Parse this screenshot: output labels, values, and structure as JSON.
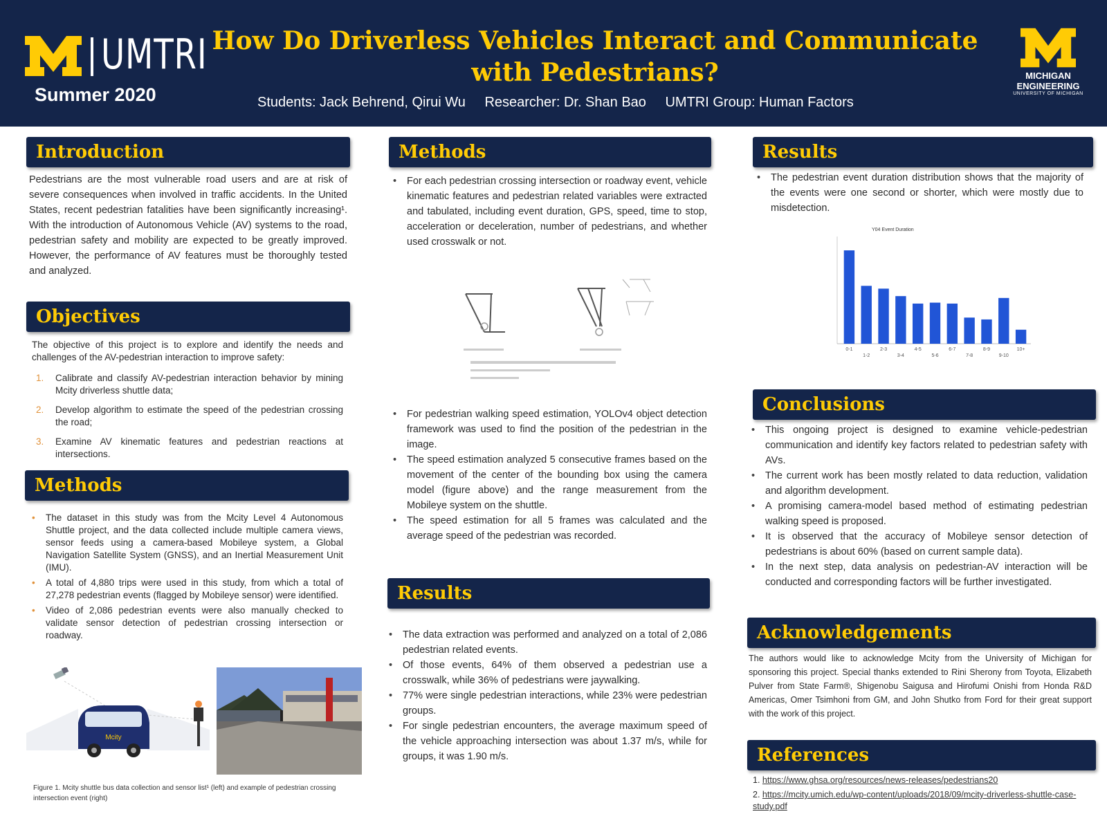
{
  "header": {
    "org": "UMTRI",
    "season": "Summer 2020",
    "title": "How Do Driverless Vehicles Interact and Communicate with Pedestrians?",
    "students": "Students: Jack Behrend, Qirui Wu",
    "researcher": "Researcher: Dr. Shan Bao",
    "group": "UMTRI Group:  Human Factors",
    "partner_logo_line1": "MICHIGAN",
    "partner_logo_line2": "ENGINEERING",
    "partner_logo_line3": "UNIVERSITY OF MICHIGAN"
  },
  "colors": {
    "navy": "#14254a",
    "maize": "#ffcb05",
    "bar_blue": "#2155d6",
    "bullet_orange": "#e0913a"
  },
  "introduction": {
    "heading": "Introduction",
    "text": "Pedestrians are the most vulnerable road users and are at risk of severe consequences when involved in traffic accidents. In the United States, recent pedestrian fatalities have been significantly increasing¹. With the introduction of Autonomous Vehicle (AV) systems to the road, pedestrian safety and mobility are expected to be greatly improved. However, the performance of AV features must be thoroughly tested and analyzed."
  },
  "objectives": {
    "heading": "Objectives",
    "text": "The objective of this project is to explore and identify the needs and challenges of  the AV-pedestrian interaction to improve safety:",
    "items": [
      {
        "num": "1.",
        "text": "Calibrate and classify AV-pedestrian interaction behavior by mining Mcity driverless shuttle data;"
      },
      {
        "num": "2.",
        "text": "Develop algorithm to estimate the speed of the pedestrian crossing the road;"
      },
      {
        "num": "3.",
        "text": "Examine AV kinematic features and pedestrian reactions at intersections."
      }
    ]
  },
  "methods_left": {
    "heading": "Methods",
    "bullets": [
      "The dataset in this study was from the Mcity Level 4 Autonomous Shuttle project, and the data collected include multiple camera views, sensor feeds using a camera-based Mobileye system, a Global Navigation Satellite System (GNSS), and an Inertial Measurement Unit (IMU).",
      "A total of 4,880 trips were used in this study, from which a total of 27,278 pedestrian events (flagged by Mobileye sensor) were identified.",
      "Video of 2,086 pedestrian events were also manually checked to validate sensor detection of pedestrian crossing intersection or roadway."
    ],
    "figure_caption": "Figure 1. Mcity shuttle bus data collection and sensor list¹ (left) and example of pedestrian crossing intersection event (right)",
    "shuttle_label": "Mcity"
  },
  "methods_mid": {
    "heading": "Methods",
    "bullets_top": [
      "For each pedestrian crossing intersection or roadway event, vehicle kinematic features and pedestrian related variables were extracted and tabulated, including event duration, GPS, speed, time to stop, acceleration or deceleration, number of pedestrians, and whether used crosswalk or not."
    ],
    "bullets_bottom": [
      "For pedestrian walking speed estimation, YOLOv4 object detection framework was used to find the position of the pedestrian in the image.",
      "The speed estimation analyzed 5 consecutive frames based on the  movement of the center of the bounding box using the camera model (figure above) and the range measurement from the Mobileye system on the shuttle.",
      "The speed estimation for all 5 frames was calculated and the average speed of the pedestrian was recorded."
    ]
  },
  "results_mid": {
    "heading": "Results",
    "bullets": [
      "The data extraction was performed and analyzed on a total of 2,086 pedestrian related events.",
      "Of those events, 64% of them observed a pedestrian use a crosswalk, while 36% of pedestrians were jaywalking.",
      "77% were single pedestrian interactions, while 23% were pedestrian groups.",
      "For single pedestrian encounters, the average maximum speed of the vehicle approaching intersection was about 1.37 m/s, while for groups, it was 1.90 m/s."
    ]
  },
  "results_right": {
    "heading": "Results",
    "bullets": [
      "The pedestrian event duration distribution shows that the majority of the events were one second or shorter, which were mostly due to misdetection."
    ]
  },
  "chart_data": {
    "type": "bar",
    "title": "Y04 Event Duration",
    "categories": [
      "0-1",
      "1-2",
      "2-3",
      "3-4",
      "4-5",
      "5-6",
      "6-7",
      "7-8",
      "8-9",
      "9-10",
      "10+"
    ],
    "values": [
      100,
      62,
      59,
      51,
      43,
      44,
      43,
      28,
      26,
      49,
      15
    ],
    "grid": false,
    "legend": "none"
  },
  "conclusions": {
    "heading": "Conclusions",
    "bullets": [
      "This ongoing project is designed to examine vehicle-pedestrian communication and identify key factors related to pedestrian safety with AVs.",
      "The current work has been mostly related to data reduction, validation and algorithm development.",
      "A promising camera-model based method of estimating pedestrian walking speed is proposed.",
      "It is observed that the accuracy of Mobileye sensor detection of pedestrians is about 60% (based on current sample data).",
      "In the next step, data analysis on pedestrian-AV interaction will be conducted and corresponding factors will be further investigated."
    ]
  },
  "acknowledgements": {
    "heading": "Acknowledgements",
    "text": "The authors would like to acknowledge Mcity from the University of Michigan for sponsoring this project. Special thanks extended to Rini Sherony from Toyota, Elizabeth Pulver from State Farm®, Shigenobu Saigusa and Hirofumi Onishi from Honda R&D Americas, Omer Tsimhoni from GM, and John Shutko from Ford for their great support with the work of this project."
  },
  "references": {
    "heading": "References",
    "items": [
      {
        "num": "1.",
        "url": "https://www.ghsa.org/resources/news-releases/pedestrians20"
      },
      {
        "num": "2.",
        "url": "https://mcity.umich.edu/wp-content/uploads/2018/09/mcity-driverless-shuttle-case-study.pdf"
      }
    ]
  }
}
